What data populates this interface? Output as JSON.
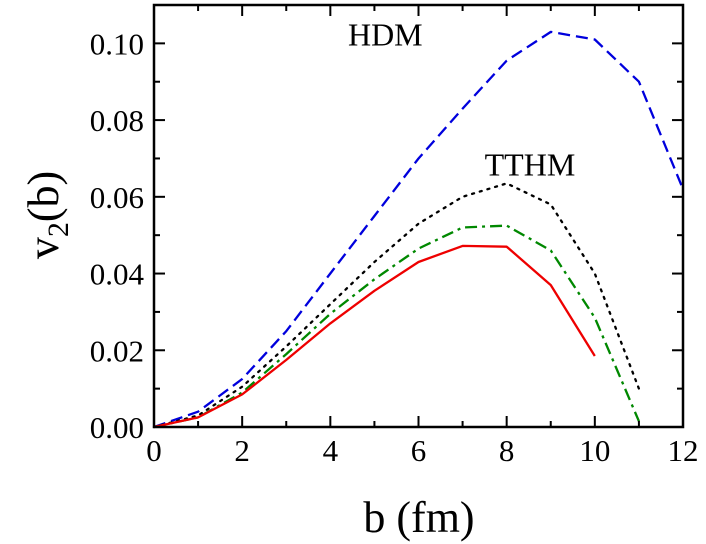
{
  "chart_data": {
    "type": "line",
    "xlabel": "b (fm)",
    "ylabel": {
      "main": "v",
      "sub": "2",
      "tail": "(b)"
    },
    "xlim": [
      0,
      12
    ],
    "ylim": [
      0,
      0.11
    ],
    "x_ticks": [
      0,
      2,
      4,
      6,
      8,
      10,
      12
    ],
    "x_tick_labels": [
      "0",
      "2",
      "4",
      "6",
      "8",
      "10",
      "12"
    ],
    "y_ticks": [
      0.0,
      0.02,
      0.04,
      0.06,
      0.08,
      0.1
    ],
    "y_tick_labels": [
      "0.00",
      "0.02",
      "0.04",
      "0.06",
      "0.08",
      "0.10"
    ],
    "grid": false,
    "series": [
      {
        "name": "HDM",
        "color": "#0000dd",
        "style": "dashed",
        "x": [
          0,
          1,
          2,
          3,
          4,
          5,
          6,
          7,
          8,
          9,
          10,
          11,
          12
        ],
        "y": [
          0.0,
          0.004,
          0.0125,
          0.025,
          0.04,
          0.055,
          0.07,
          0.083,
          0.0955,
          0.103,
          0.101,
          0.09,
          0.062
        ]
      },
      {
        "name": "TTHM",
        "color": "#000000",
        "style": "dotted",
        "x": [
          0,
          1,
          2,
          3,
          4,
          5,
          6,
          7,
          8,
          9,
          10,
          11
        ],
        "y": [
          0.0,
          0.003,
          0.0105,
          0.021,
          0.032,
          0.043,
          0.053,
          0.06,
          0.0635,
          0.058,
          0.04,
          0.01
        ]
      },
      {
        "name": "",
        "color": "#008800",
        "style": "dashdot",
        "x": [
          0,
          1,
          2,
          3,
          4,
          5,
          6,
          7,
          8,
          9,
          10,
          11
        ],
        "y": [
          0.0,
          0.0025,
          0.009,
          0.019,
          0.0295,
          0.0385,
          0.0465,
          0.052,
          0.0525,
          0.046,
          0.0285,
          0.0015
        ]
      },
      {
        "name": "",
        "color": "#ee0000",
        "style": "solid",
        "x": [
          0,
          1,
          2,
          3,
          4,
          5,
          6,
          7,
          8,
          9,
          10
        ],
        "y": [
          0.0,
          0.0025,
          0.0085,
          0.0175,
          0.027,
          0.0355,
          0.043,
          0.0472,
          0.047,
          0.037,
          0.0185
        ]
      }
    ],
    "annotations": [
      {
        "text": "HDM",
        "x": 4.4,
        "y": 0.0995
      },
      {
        "text": "TTHM",
        "x": 7.5,
        "y": 0.0655
      }
    ]
  }
}
